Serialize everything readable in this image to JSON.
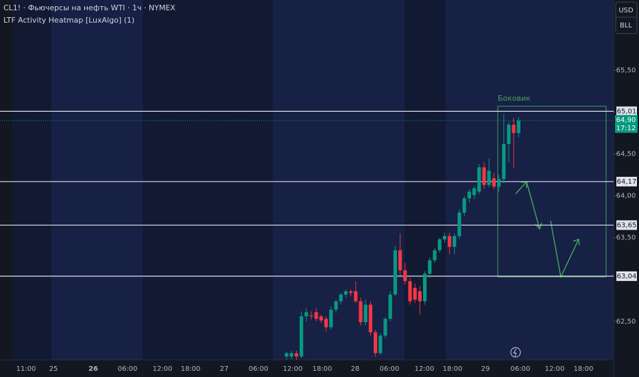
{
  "chart_data": {
    "type": "candlestick",
    "title": "CL1! · Фьючерсы на нефть WTI · 1ч · NYMEX",
    "subtitle": "LTF Activity Heatmap [LuxAlgo] (1)",
    "buttons": [
      "USD",
      "BLL"
    ],
    "annotation": "Боковик",
    "up_color": "#089981",
    "down_color": "#f23645",
    "ylim": [
      62.04,
      66.34
    ],
    "yticks": [
      {
        "value": 65.5,
        "label": "65,50"
      },
      {
        "value": 65,
        "label": "65,00"
      },
      {
        "value": 64.5,
        "label": "64,50"
      },
      {
        "value": 64,
        "label": "64,00"
      },
      {
        "value": 63.5,
        "label": "63,50"
      },
      {
        "value": 62.5,
        "label": "62,50"
      }
    ],
    "levels": [
      {
        "value": 65.01,
        "label": "65,01"
      },
      {
        "value": 64.17,
        "label": "64,17"
      },
      {
        "value": 63.65,
        "label": "63,65"
      },
      {
        "value": 63.04,
        "label": "63,04"
      }
    ],
    "last_price": {
      "value": 64.9,
      "label": "64,90"
    },
    "countdown": "17:12",
    "x_tick_labels": [
      "11:00",
      "25",
      "26",
      "06:00",
      "12:00",
      "18:00",
      "27",
      "06:00",
      "12:00",
      "18:00",
      "28",
      "06:00",
      "12:00",
      "18:00",
      "29",
      "06:00",
      "12:00",
      "18:00"
    ],
    "ohlc": [
      [
        62.08,
        62.14,
        62.04,
        62.12
      ],
      [
        62.08,
        62.15,
        62.05,
        62.12
      ],
      [
        62.12,
        62.15,
        62.04,
        62.08
      ],
      [
        62.08,
        62.62,
        62.06,
        62.56
      ],
      [
        62.56,
        62.66,
        62.5,
        62.61
      ],
      [
        62.57,
        62.62,
        62.52,
        62.56
      ],
      [
        62.61,
        62.66,
        62.5,
        62.53
      ],
      [
        62.56,
        62.58,
        62.48,
        62.51
      ],
      [
        62.53,
        62.56,
        62.38,
        62.43
      ],
      [
        62.43,
        62.68,
        62.4,
        62.64
      ],
      [
        62.64,
        62.76,
        62.6,
        62.74
      ],
      [
        62.74,
        62.84,
        62.7,
        62.82
      ],
      [
        62.82,
        62.88,
        62.78,
        62.86
      ],
      [
        62.86,
        62.88,
        62.8,
        62.84
      ],
      [
        62.86,
        62.98,
        62.72,
        62.74
      ],
      [
        62.74,
        62.78,
        62.45,
        62.49
      ],
      [
        62.49,
        62.76,
        62.45,
        62.7
      ],
      [
        62.7,
        62.74,
        62.33,
        62.37
      ],
      [
        62.37,
        62.4,
        62.08,
        62.12
      ],
      [
        62.12,
        62.36,
        62.1,
        62.33
      ],
      [
        62.33,
        62.55,
        62.3,
        62.53
      ],
      [
        62.53,
        62.86,
        62.5,
        62.82
      ],
      [
        62.82,
        63.4,
        62.8,
        63.35
      ],
      [
        63.35,
        63.55,
        63.05,
        63.11
      ],
      [
        63.11,
        63.2,
        62.94,
        62.98
      ],
      [
        62.98,
        63.02,
        62.7,
        62.74
      ],
      [
        62.9,
        62.95,
        62.72,
        62.76
      ],
      [
        62.86,
        62.92,
        62.58,
        62.74
      ],
      [
        62.74,
        63.1,
        62.7,
        63.07
      ],
      [
        63.07,
        63.26,
        63.02,
        63.23
      ],
      [
        63.23,
        63.38,
        63.2,
        63.35
      ],
      [
        63.35,
        63.5,
        63.32,
        63.48
      ],
      [
        63.48,
        63.56,
        63.44,
        63.52
      ],
      [
        63.52,
        63.56,
        63.3,
        63.39
      ],
      [
        63.39,
        63.55,
        63.3,
        63.52
      ],
      [
        63.52,
        63.84,
        63.48,
        63.8
      ],
      [
        63.8,
        64,
        63.76,
        63.97
      ],
      [
        63.97,
        64.08,
        63.92,
        64.05
      ],
      [
        64.01,
        64.12,
        63.96,
        64.09
      ],
      [
        64.05,
        64.38,
        64.02,
        64.34
      ],
      [
        64.34,
        64.4,
        64.08,
        64.13
      ],
      [
        64.13,
        64.45,
        64.1,
        64.3
      ],
      [
        64.21,
        64.28,
        64.08,
        64.11
      ],
      [
        64.11,
        64.25,
        64.05,
        64.2
      ],
      [
        64.2,
        64.98,
        64.15,
        64.62
      ],
      [
        64.62,
        64.88,
        64.4,
        64.85
      ],
      [
        64.85,
        64.93,
        64.33,
        64.75
      ],
      [
        64.75,
        64.94,
        64.7,
        64.9
      ]
    ]
  }
}
